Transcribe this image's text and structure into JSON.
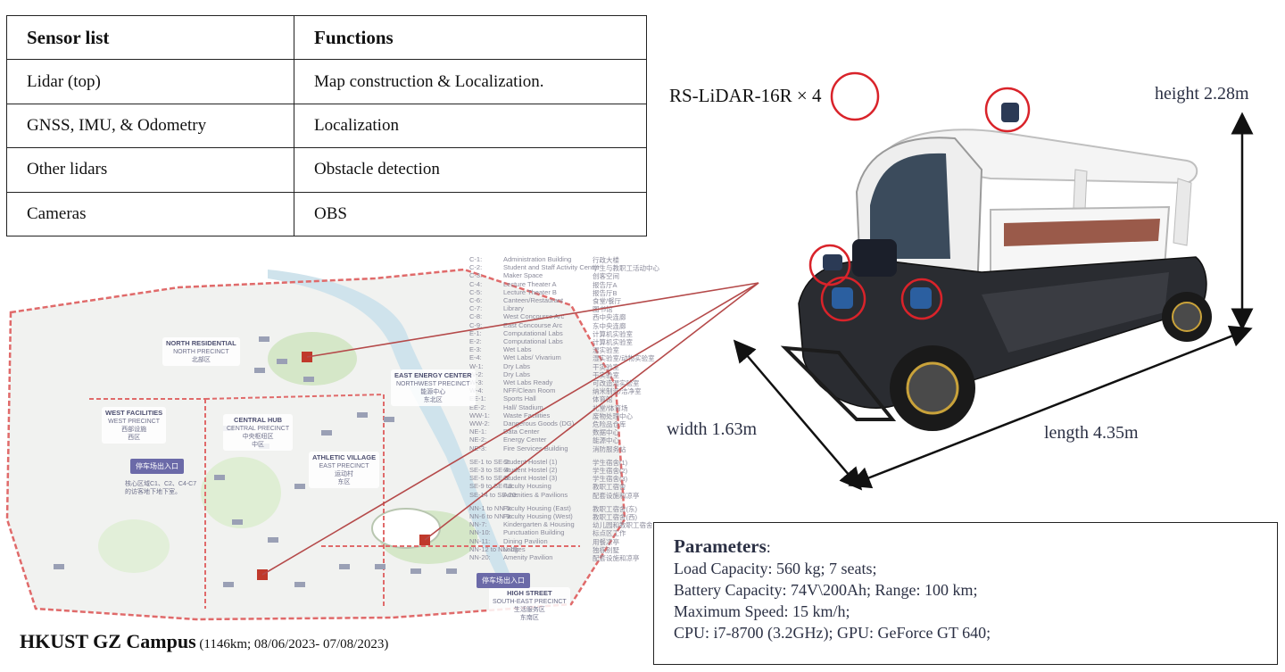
{
  "sensor_table": {
    "headers": [
      "Sensor list",
      "Functions"
    ],
    "rows": [
      [
        "Lidar (top)",
        "Map construction & Localization."
      ],
      [
        "GNSS, IMU, & Odometry",
        "Localization"
      ],
      [
        "Other lidars",
        "Obstacle detection"
      ],
      [
        "Cameras",
        "OBS"
      ]
    ]
  },
  "map": {
    "legend": [
      [
        "C-1:",
        "Administration Building",
        "行政大楼"
      ],
      [
        "C-2:",
        "Student and Staff Activity Center",
        "学生与教职工活动中心"
      ],
      [
        "C-3:",
        "Maker Space",
        "创客空间"
      ],
      [
        "C-4:",
        "Lecture Theater A",
        "报告厅A"
      ],
      [
        "C-5:",
        "Lecture Theater B",
        "报告厅B"
      ],
      [
        "C-6:",
        "Canteen/Restaurant",
        "食堂/餐厅"
      ],
      [
        "C-7:",
        "Library",
        "图书馆"
      ],
      [
        "C-8:",
        "West Concourse Arc",
        "西中央连廊"
      ],
      [
        "C-9:",
        "East Concourse Arc",
        "东中央连廊"
      ],
      [
        "E-1:",
        "Computational Labs",
        "计算机实验室"
      ],
      [
        "E-2:",
        "Computational Labs",
        "计算机实验室"
      ],
      [
        "E-3:",
        "Wet Labs",
        "湿实验室"
      ],
      [
        "E-4:",
        "Wet Labs/ Vivarium",
        "湿实验室/动物实验室"
      ],
      [
        "W-1:",
        "Dry Labs",
        "干实验室"
      ],
      [
        "W-2:",
        "Dry Labs",
        "干实验室"
      ],
      [
        "W-3:",
        "Wet Labs Ready",
        "可改造湿实验室"
      ],
      [
        "W-4:",
        "NFF/Clean Room",
        "纳米制造/洁净室"
      ],
      [
        "EE-1:",
        "Sports Hall",
        "体育馆"
      ],
      [
        "EE-2:",
        "Hall/ Stadium",
        "礼堂/体育场"
      ],
      [
        "WW-1:",
        "Waste Facilities",
        "废物处理中心"
      ],
      [
        "WW-2:",
        "Dangerous Goods (DG)",
        "危险品仓库"
      ],
      [
        "NE-1:",
        "Data Center",
        "数据中心"
      ],
      [
        "NE-2:",
        "Energy Center",
        "能源中心"
      ],
      [
        "NE-3:",
        "Fire Services Building",
        "消防服务站"
      ],
      [
        "SE-1 to SE-2:",
        "Student Hostel (1)",
        "学生宿舍(1)"
      ],
      [
        "SE-3 to SE-4:",
        "Student Hostel (2)",
        "学生宿舍(2)"
      ],
      [
        "SE-5 to SE-8:",
        "Student Hostel (3)",
        "学生宿舍(3)"
      ],
      [
        "SE-9 to SE-13:",
        "Faculty Housing",
        "教职工宿舍"
      ],
      [
        "SE-14 to SE-20:",
        "Amenities & Pavilions",
        "配套设施和凉亭"
      ],
      [
        "NN-1 to NN-5:",
        "Faculty Housing (East)",
        "教职工宿舍(东)"
      ],
      [
        "NN-6 to NN-9:",
        "Faculty Housing (West)",
        "教职工宿舍(西)"
      ],
      [
        "NN-7:",
        "Kindergarten & Housing",
        "幼儿园和教职工宿舍"
      ],
      [
        "NN-10:",
        "Punctuation Building",
        "标点区工作"
      ],
      [
        "NN-11:",
        "Dining Pavilion",
        "用餐凉亭"
      ],
      [
        "NN-12 to NN-19:",
        "Lodges",
        "独栋别墅"
      ],
      [
        "NN-20:",
        "Amenity Pavilion",
        "配套设施和凉亭"
      ]
    ],
    "zones": {
      "north": [
        "NORTH RESIDENTIAL",
        "NORTH PRECINCT",
        "北部区"
      ],
      "east_energy": [
        "EAST ENERGY CENTER",
        "NORTHWEST PRECINCT",
        "能源中心",
        "东北区"
      ],
      "west": [
        "WEST FACILITIES",
        "WEST PRECINCT",
        "西部设施",
        "西区"
      ],
      "central": [
        "CENTRAL HUB",
        "CENTRAL PRECINCT",
        "中央枢纽区",
        "中区"
      ],
      "athletic": [
        "ATHLETIC VILLAGE",
        "EAST PRECINCT",
        "运动村",
        "东区"
      ],
      "high_street": [
        "HIGH STREET",
        "SOUTH-EAST PRECINCT",
        "生活服务区",
        "东南区"
      ]
    },
    "parking_label": "停车场出入口",
    "parking_note": [
      "核心区域C1、C2、C4-C7",
      "的访客地下地下室。"
    ]
  },
  "caption": {
    "title": "HKUST GZ Campus",
    "detail": "(1146km; 08/06/2023- 07/08/2023)"
  },
  "vehicle": {
    "lidar_label": "RS-LiDAR-16R ×",
    "lidar_count": "4",
    "height": "height 2.28m",
    "width": "width 1.63m",
    "length": "length 4.35m"
  },
  "parameters": {
    "title": "Parameters",
    "colon": ":",
    "rows": [
      "Load Capacity: 560 kg; 7 seats;",
      "Battery Capacity: 74V\\200Ah; Range: 100 km;",
      "Maximum Speed: 15 km/h;",
      "CPU: i7-8700 (3.2GHz); GPU: GeForce GT 640;"
    ]
  },
  "colors": {
    "circle": "#d9232a",
    "route": "#b54a4a",
    "map_boundary": "#e06a6a",
    "water": "#cfe3ec",
    "green": "#d5e7c8",
    "parking": "#6b6aa8",
    "text_dark": "#2b3044"
  }
}
